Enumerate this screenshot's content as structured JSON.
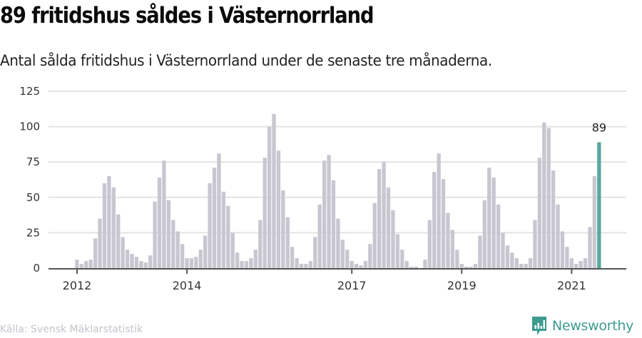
{
  "header": {
    "title": "89 fritidshus såldes i Västernorrland",
    "subtitle": "Antal sålda fritidshus i Västernorrland under de senaste tre månaderna."
  },
  "footer": {
    "source": "Källa: Svensk Mäklarstatistik",
    "brand": "Newsworthy",
    "brand_icon": "bar-chart-speech-bubble-icon"
  },
  "colors": {
    "bar": "#c8c7d1",
    "highlight": "#5aa89c",
    "grid": "#e3e3e3",
    "axis": "#555555",
    "brand": "#3d9b90"
  },
  "chart_data": {
    "type": "bar",
    "title": "89 fritidshus såldes i Västernorrland",
    "subtitle": "Antal sålda fritidshus i Västernorrland under de senaste tre månaderna.",
    "xlabel": "",
    "ylabel": "",
    "ylim": [
      0,
      125
    ],
    "yticks": [
      0,
      25,
      50,
      75,
      100,
      125
    ],
    "grid": true,
    "start": "2012-01",
    "frequency": "monthly",
    "xticks": [
      {
        "label": "2012",
        "month_index": 0
      },
      {
        "label": "2014",
        "month_index": 24
      },
      {
        "label": "2017",
        "month_index": 60
      },
      {
        "label": "2019",
        "month_index": 84
      },
      {
        "label": "2021",
        "month_index": 108
      }
    ],
    "x_range_months": [
      -5,
      120
    ],
    "values": [
      6,
      3,
      5,
      6,
      21,
      35,
      60,
      65,
      57,
      38,
      22,
      13,
      10,
      8,
      5,
      4,
      9,
      47,
      64,
      76,
      48,
      34,
      26,
      17,
      7,
      7,
      8,
      13,
      23,
      60,
      71,
      81,
      54,
      44,
      25,
      11,
      5,
      5,
      7,
      13,
      34,
      78,
      100,
      109,
      83,
      55,
      36,
      15,
      7,
      3,
      3,
      5,
      22,
      45,
      76,
      80,
      62,
      35,
      20,
      13,
      5,
      3,
      2,
      5,
      17,
      46,
      70,
      75,
      57,
      41,
      24,
      13,
      5,
      1,
      1,
      0,
      6,
      34,
      68,
      81,
      63,
      39,
      27,
      13,
      3,
      1,
      1,
      3,
      23,
      48,
      71,
      64,
      45,
      25,
      16,
      11,
      7,
      3,
      3,
      7,
      34,
      78,
      103,
      99,
      69,
      45,
      26,
      15,
      7,
      3,
      5,
      7,
      29,
      65,
      89
    ],
    "highlight": {
      "index": 114,
      "label": "89"
    }
  }
}
